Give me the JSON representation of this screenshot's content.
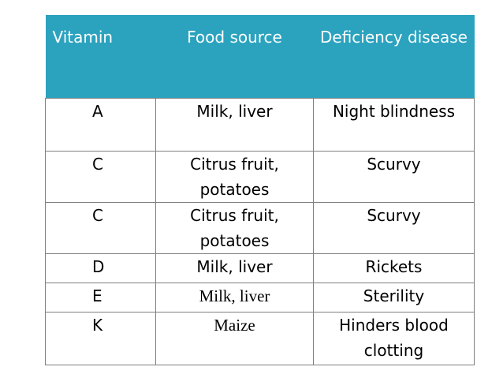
{
  "table": {
    "headers": [
      "Vitamin",
      "Food source",
      "Deficiency disease"
    ],
    "rows": [
      {
        "vitamin": "A",
        "food": "Milk, liver",
        "disease": "Night blindness"
      },
      {
        "vitamin": "C",
        "food": "Citrus fruit, potatoes",
        "disease": "Scurvy"
      },
      {
        "vitamin": "C",
        "food": "Citrus fruit, potatoes",
        "disease": "Scurvy"
      },
      {
        "vitamin": "D",
        "food": "Milk, liver",
        "disease": "Rickets"
      },
      {
        "vitamin": "E",
        "food": "Milk, liver",
        "disease": "Sterility"
      },
      {
        "vitamin": "K",
        "food": "Maize",
        "disease": "Hinders blood clotting"
      }
    ],
    "colors": {
      "header_bg": "#2ba3bf",
      "header_text": "#ffffff",
      "border": "#7f7f7f"
    }
  }
}
